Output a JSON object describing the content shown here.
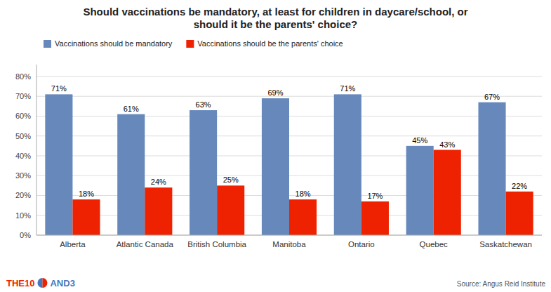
{
  "chart_data": {
    "type": "bar",
    "title": "Should vaccinations be mandatory, at least for children in daycare/school, or\nshould it be the parents' choice?",
    "categories": [
      "Alberta",
      "Atlantic Canada",
      "British Columbia",
      "Manitoba",
      "Ontario",
      "Quebec",
      "Saskatchewan"
    ],
    "series": [
      {
        "name": "Vaccinations should be mandatory",
        "color": "#6688BB",
        "values": [
          71,
          61,
          63,
          69,
          71,
          45,
          67
        ],
        "value_labels": [
          "71%",
          "61%",
          "63%",
          "69%",
          "71%",
          "45%",
          "67%"
        ]
      },
      {
        "name": "Vaccinations should be the parents' choice",
        "color": "#EE2200",
        "values": [
          18,
          24,
          25,
          18,
          17,
          43,
          22
        ],
        "value_labels": [
          "18%",
          "24%",
          "25%",
          "18%",
          "17%",
          "43%",
          "22%"
        ]
      }
    ],
    "ylim": [
      0,
      86
    ],
    "yticks": [
      {
        "value": 0,
        "label": "0%"
      },
      {
        "value": 10,
        "label": "10%"
      },
      {
        "value": 20,
        "label": "20%"
      },
      {
        "value": 30,
        "label": "30%"
      },
      {
        "value": 40,
        "label": "40%"
      },
      {
        "value": 50,
        "label": "50%"
      },
      {
        "value": 60,
        "label": "60%"
      },
      {
        "value": 70,
        "label": "70%"
      },
      {
        "value": 80,
        "label": "80%"
      }
    ],
    "grid": true,
    "legend": "top-left",
    "data_labels": true,
    "annotations": [
      {
        "text": "Source: Angus Reid Institute",
        "color": "#555555"
      },
      {
        "text": "THE10",
        "color": "#EE2200"
      },
      {
        "text": "AND3",
        "color": "#4477BB"
      }
    ]
  }
}
